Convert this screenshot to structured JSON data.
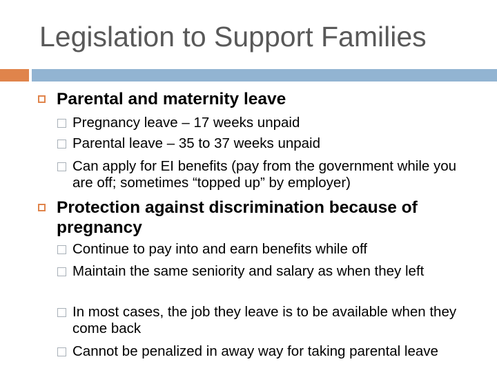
{
  "title": "Legislation to Support Families",
  "colors": {
    "accent_orange": "#e0844b",
    "accent_blue": "#92b4d2",
    "title": "#595959"
  },
  "sections": [
    {
      "heading": "Parental and maternity leave",
      "items": [
        "Pregnancy leave – 17 weeks unpaid",
        "Parental leave – 35 to 37 weeks unpaid",
        "Can apply for EI benefits (pay from the government while you are off; sometimes “topped up” by employer)"
      ]
    },
    {
      "heading": "Protection against discrimination because of pregnancy",
      "items": [
        "Continue to pay into and earn benefits while off",
        "Maintain the same seniority and salary as when they left",
        "In most cases, the job they leave is to be available when they come back",
        "Cannot be penalized in away way for taking parental leave"
      ]
    }
  ]
}
